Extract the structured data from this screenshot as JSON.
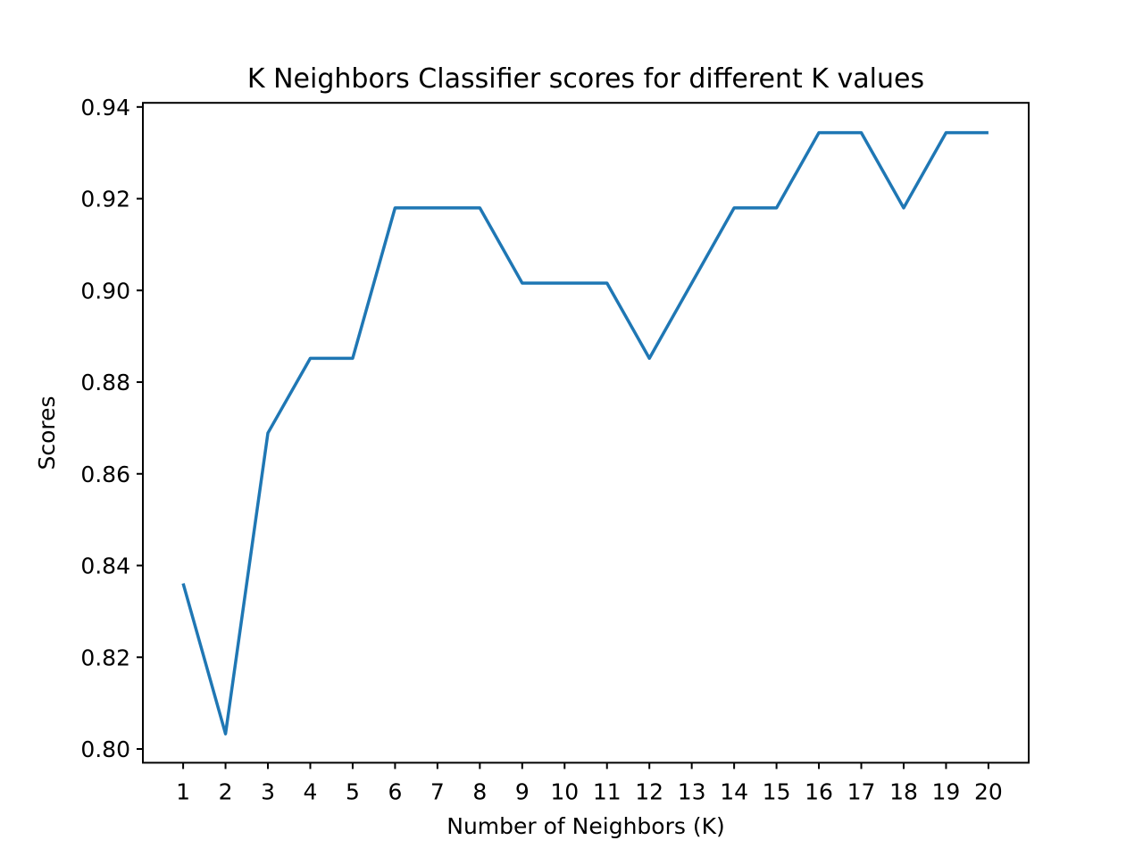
{
  "chart_data": {
    "type": "line",
    "title": "K Neighbors Classifier scores for different K values",
    "xlabel": "Number of Neighbors (K)",
    "ylabel": "Scores",
    "x": [
      1,
      2,
      3,
      4,
      5,
      6,
      7,
      8,
      9,
      10,
      11,
      12,
      13,
      14,
      15,
      16,
      17,
      18,
      19,
      20
    ],
    "xticks": [
      "1",
      "2",
      "3",
      "4",
      "5",
      "6",
      "7",
      "8",
      "9",
      "10",
      "11",
      "12",
      "13",
      "14",
      "15",
      "16",
      "17",
      "18",
      "19",
      "20"
    ],
    "series": [
      {
        "color": "#1f77b4",
        "values": [
          0.8361,
          0.8033,
          0.8689,
          0.8852,
          0.8852,
          0.918,
          0.918,
          0.918,
          0.9016,
          0.9016,
          0.9016,
          0.8852,
          0.9016,
          0.918,
          0.918,
          0.9344,
          0.9344,
          0.918,
          0.9344,
          0.9344
        ]
      }
    ],
    "yticks": [
      0.8,
      0.82,
      0.84,
      0.86,
      0.88,
      0.9,
      0.92,
      0.94
    ],
    "ytick_labels": [
      "0.80",
      "0.82",
      "0.84",
      "0.86",
      "0.88",
      "0.90",
      "0.92",
      "0.94"
    ],
    "xlim": [
      0.05,
      20.95
    ],
    "ylim": [
      0.797,
      0.9409
    ],
    "grid": false,
    "legend": "none"
  }
}
